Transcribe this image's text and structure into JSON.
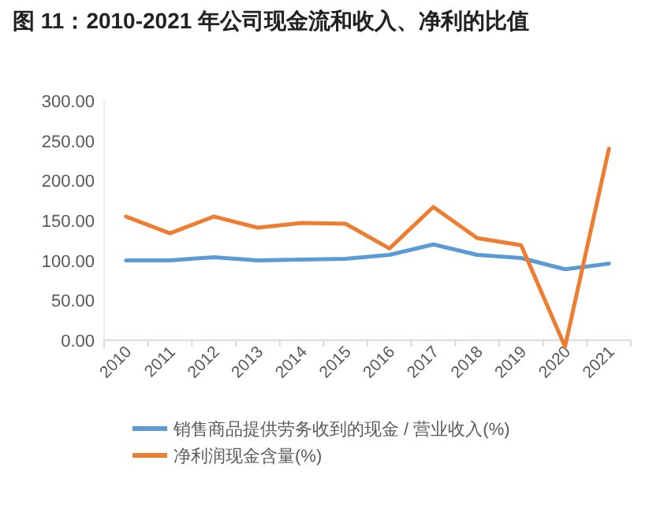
{
  "chart_data": {
    "type": "line",
    "title": "图 11：2010-2021 年公司现金流和收入、净利的比值",
    "categories": [
      "2010",
      "2011",
      "2012",
      "2013",
      "2014",
      "2015",
      "2016",
      "2017",
      "2018",
      "2019",
      "2020",
      "2021"
    ],
    "series": [
      {
        "name": "销售商品提供劳务收到的现金 / 营业收入(%)",
        "color": "#5b9bd5",
        "values": [
          100,
          100,
          104,
          100,
          101,
          102,
          107,
          120,
          107,
          103,
          89,
          96
        ]
      },
      {
        "name": "净利润现金含量(%)",
        "color": "#ed7d31",
        "values": [
          155,
          134,
          155,
          141,
          147,
          146,
          115,
          167,
          128,
          119,
          -8,
          240
        ]
      }
    ],
    "ylim": [
      -12,
      300
    ],
    "yticks": [
      {
        "value": 0,
        "label": "0.00"
      },
      {
        "value": 50,
        "label": "50.00"
      },
      {
        "value": 100,
        "label": "100.00"
      },
      {
        "value": 150,
        "label": "150.00"
      },
      {
        "value": 200,
        "label": "200.00"
      },
      {
        "value": 250,
        "label": "250.00"
      },
      {
        "value": 300,
        "label": "300.00"
      }
    ],
    "legend": "bottom",
    "grid": false,
    "marker": "none",
    "line_style": "solid"
  }
}
